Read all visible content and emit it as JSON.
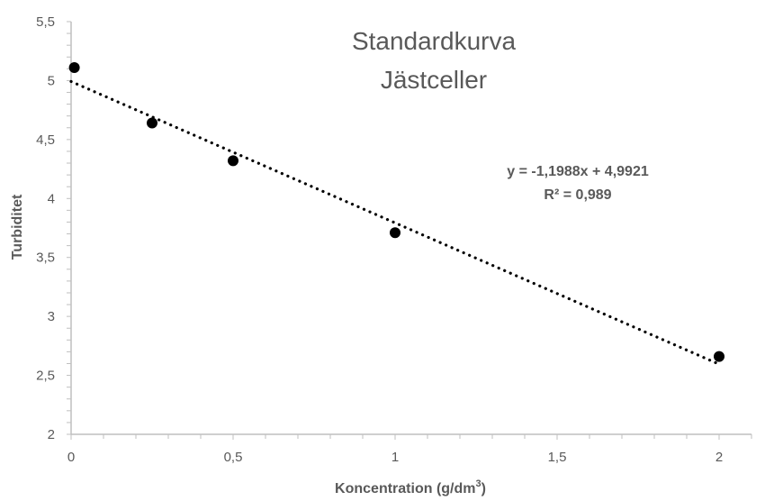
{
  "chart_data": {
    "type": "scatter",
    "title_lines": [
      "Standardkurva",
      "Jästceller"
    ],
    "xlabel": "Koncentration (g/dm",
    "xlabel_sup": "3",
    "xlabel_end": ")",
    "ylabel": "Turbiditet",
    "xlim": [
      0,
      2.1
    ],
    "ylim": [
      2,
      5.5
    ],
    "x_ticks": [
      "0",
      "0,5",
      "1",
      "1,5",
      "2"
    ],
    "y_ticks": [
      "2",
      "2,5",
      "3",
      "3,5",
      "4",
      "4,5",
      "5",
      "5,5"
    ],
    "series": [
      {
        "x": [
          0.01,
          0.25,
          0.5,
          1,
          2
        ],
        "y": [
          5.11,
          4.64,
          4.32,
          3.71,
          2.66
        ]
      }
    ],
    "trendline": {
      "type": "linear",
      "slope": -1.1988,
      "intercept": 4.9921,
      "x_range": [
        0,
        2
      ]
    },
    "equation_label": "y = -1,1988x + 4,9921",
    "r2_label": "R² = 0,989",
    "marker_color": "#000000",
    "axis_color": "#bfbfbf",
    "grid": false
  }
}
